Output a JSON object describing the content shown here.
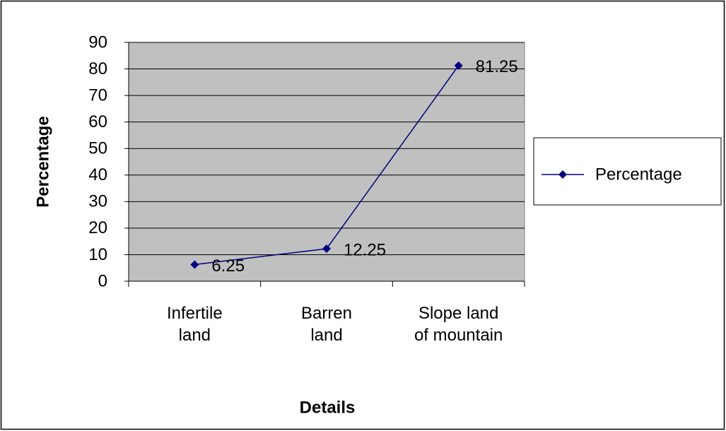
{
  "chart_data": {
    "type": "line",
    "x_label": "Details",
    "y_label": "Percentage",
    "categories": [
      "Infertile land",
      "Barren land",
      "Slope land of mountain"
    ],
    "series": [
      {
        "name": "Percentage",
        "color": "#000080",
        "values": [
          6.25,
          12.25,
          81.25
        ]
      }
    ],
    "ylim": [
      0,
      90
    ],
    "yticks": [
      0,
      10,
      20,
      30,
      40,
      50,
      60,
      70,
      80,
      90
    ],
    "grid": true,
    "legend": "right",
    "plot_background": "#c0c0c0"
  }
}
